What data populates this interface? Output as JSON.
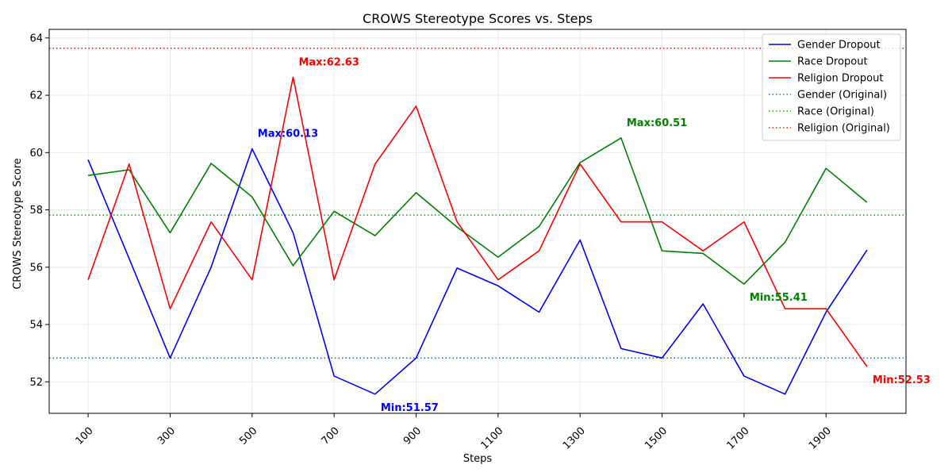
{
  "chart_data": {
    "type": "line",
    "title": "CROWS Stereotype Scores vs. Steps",
    "xlabel": "Steps",
    "ylabel": "CROWS Stereotype Score",
    "x": [
      100,
      200,
      300,
      400,
      500,
      600,
      700,
      800,
      900,
      1000,
      1100,
      1200,
      1300,
      1400,
      1500,
      1600,
      1700,
      1800,
      1900,
      2000
    ],
    "xticks": [
      "100",
      "300",
      "500",
      "700",
      "900",
      "1100",
      "1300",
      "1500",
      "1700",
      "1900"
    ],
    "yticks": [
      "52",
      "54",
      "56",
      "58",
      "60",
      "62",
      "64"
    ],
    "xlim": [
      5,
      2095
    ],
    "ylim": [
      50.9,
      64.3
    ],
    "grid": true,
    "legend_position": "top-right",
    "series": [
      {
        "name": "Gender Dropout",
        "color": "#0000ff",
        "style": "solid",
        "values": [
          59.75,
          56.3,
          52.83,
          56.0,
          60.13,
          57.2,
          52.2,
          51.57,
          52.83,
          55.97,
          55.35,
          54.43,
          56.95,
          53.16,
          52.83,
          54.72,
          52.2,
          51.57,
          54.43,
          56.6
        ]
      },
      {
        "name": "Race Dropout",
        "color": "#008000",
        "style": "solid",
        "values": [
          59.2,
          59.4,
          57.2,
          59.62,
          58.45,
          56.05,
          57.95,
          57.1,
          58.6,
          57.4,
          56.35,
          57.42,
          59.65,
          60.51,
          56.57,
          56.48,
          55.41,
          56.87,
          59.45,
          58.26
        ]
      },
      {
        "name": "Religion Dropout",
        "color": "#ff0000",
        "style": "solid",
        "values": [
          55.56,
          59.6,
          54.55,
          57.58,
          55.56,
          62.63,
          55.56,
          59.6,
          61.62,
          57.58,
          55.56,
          56.57,
          59.6,
          57.58,
          57.58,
          56.57,
          57.58,
          54.55,
          54.55,
          52.53
        ]
      }
    ],
    "reference_lines": [
      {
        "name": "Gender (Original)",
        "color": "#1f77b4",
        "style": "dotted",
        "value": 52.83
      },
      {
        "name": "Race (Original)",
        "color": "#2ca02c",
        "style": "dotted",
        "value": 57.82
      },
      {
        "name": "Religion (Original)",
        "color": "#d62728",
        "style": "dotted",
        "value": 63.64
      }
    ],
    "annotations": [
      {
        "text": "Max:60.13",
        "color": "#0000ff",
        "x": 500,
        "y": 60.13
      },
      {
        "text": "Min:51.57",
        "color": "#0000ff",
        "x": 800,
        "y": 51.57
      },
      {
        "text": "Max:60.51",
        "color": "#008000",
        "x": 1400,
        "y": 60.51
      },
      {
        "text": "Min:55.41",
        "color": "#008000",
        "x": 1700,
        "y": 55.41
      },
      {
        "text": "Max:62.63",
        "color": "#ff0000",
        "x": 600,
        "y": 62.63
      },
      {
        "text": "Min:52.53",
        "color": "#ff0000",
        "x": 2000,
        "y": 52.53
      }
    ]
  }
}
